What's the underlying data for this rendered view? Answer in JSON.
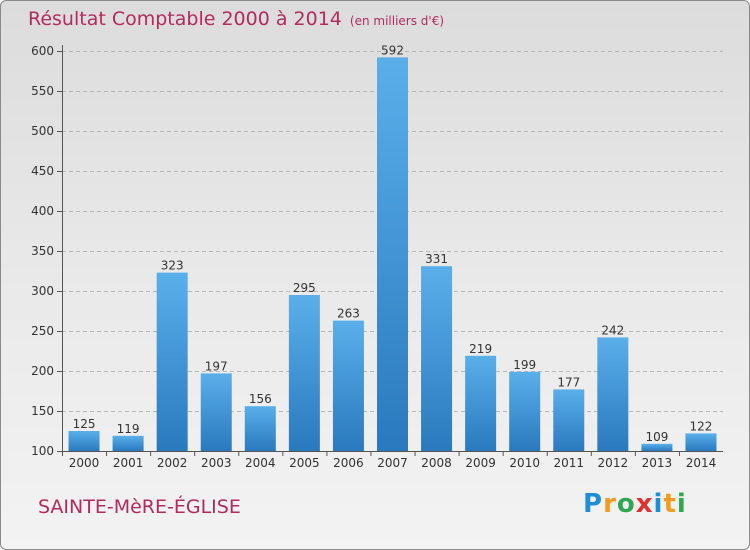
{
  "title": "Résultat Comptable 2000 à 2014",
  "subtitle": "(en milliers d'€)",
  "commune": "SAINTE-MèRE-ÉGLISE",
  "brand": {
    "letters": [
      "P",
      "r",
      "o",
      "x",
      "i",
      "t",
      "i"
    ],
    "colors": [
      "#1f8ed6",
      "#f39c1f",
      "#2fa84f",
      "#e0312f",
      "#1f8ed6",
      "#f39c1f",
      "#2fa84f"
    ]
  },
  "colors": {
    "bar_top": "#5aafea",
    "bar_bottom": "#2a79be",
    "axis": "#555555",
    "grid": "#b8b8b8",
    "title": "#b42a5d"
  },
  "chart_data": {
    "type": "bar",
    "title": "Résultat Comptable 2000 à 2014",
    "xlabel": "",
    "ylabel": "",
    "ylim": [
      100,
      600
    ],
    "yticks": [
      100,
      150,
      200,
      250,
      300,
      350,
      400,
      450,
      500,
      550,
      600
    ],
    "grid": true,
    "categories": [
      "2000",
      "2001",
      "2002",
      "2003",
      "2004",
      "2005",
      "2006",
      "2007",
      "2008",
      "2009",
      "2010",
      "2011",
      "2012",
      "2013",
      "2014"
    ],
    "values": [
      125,
      119,
      323,
      197,
      156,
      295,
      263,
      592,
      331,
      219,
      199,
      177,
      242,
      109,
      122
    ]
  }
}
